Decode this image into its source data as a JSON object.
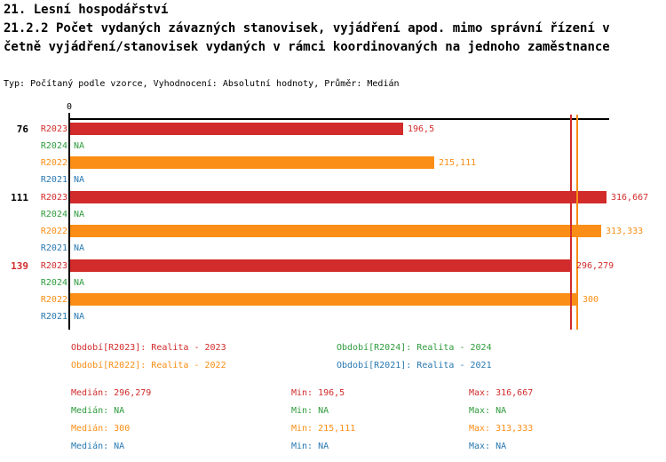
{
  "header": {
    "line1": "21. Lesní hospodářství",
    "line2": "21.2.2 Počet vydaných závazných stanovisek, vyjádření apod. mimo správní řízení v",
    "line3": "četně vyjádření/stanovisek vydaných v rámci koordinovaných na jednoho zaměstnance",
    "meta": "Typ: Počítaný podle vzorce, Vyhodnocení: Absolutní hodnoty, Průměr: Medián"
  },
  "colors": {
    "red": "#D22B2B",
    "green": "#2E9B3C",
    "orange": "#FA8E16",
    "blue": "#2878B0",
    "axis": "#000000"
  },
  "chart_data": {
    "type": "bar",
    "orientation": "horizontal",
    "x_origin_label": "0",
    "x_max": 318.8,
    "grid": false,
    "series_colors": {
      "R2023": "#D22B2B",
      "R2024": "#2E9B3C",
      "R2022": "#FA8E16",
      "R2021": "#2878B0"
    },
    "groups": [
      {
        "label": "76",
        "label_color": "#000000",
        "bars": [
          {
            "series": "R2023",
            "value": 196.5,
            "value_label": "196,5"
          },
          {
            "series": "R2024",
            "value": null,
            "value_label": "NA"
          },
          {
            "series": "R2022",
            "value": 215.111,
            "value_label": "215,111"
          },
          {
            "series": "R2021",
            "value": null,
            "value_label": "NA"
          }
        ]
      },
      {
        "label": "111",
        "label_color": "#000000",
        "bars": [
          {
            "series": "R2023",
            "value": 316.667,
            "value_label": "316,667"
          },
          {
            "series": "R2024",
            "value": null,
            "value_label": "NA"
          },
          {
            "series": "R2022",
            "value": 313.333,
            "value_label": "313,333"
          },
          {
            "series": "R2021",
            "value": null,
            "value_label": "NA"
          }
        ]
      },
      {
        "label": "139",
        "label_color": "#D22B2B",
        "bars": [
          {
            "series": "R2023",
            "value": 296.279,
            "value_label": "296,279"
          },
          {
            "series": "R2024",
            "value": null,
            "value_label": "NA"
          },
          {
            "series": "R2022",
            "value": 300,
            "value_label": "300"
          },
          {
            "series": "R2021",
            "value": null,
            "value_label": "NA"
          }
        ]
      }
    ],
    "median_lines": [
      {
        "series": "R2023",
        "value": 296.279,
        "color": "#D22B2B"
      },
      {
        "series": "R2022",
        "value": 300,
        "color": "#FA8E16"
      }
    ]
  },
  "legend": {
    "items": [
      {
        "label": "Období[R2023]: Realita - 2023",
        "color": "#D22B2B"
      },
      {
        "label": "Období[R2024]: Realita - 2024",
        "color": "#2E9B3C"
      },
      {
        "label": "Období[R2022]: Realita - 2022",
        "color": "#FA8E16"
      },
      {
        "label": "Období[R2021]: Realita - 2021",
        "color": "#2878B0"
      }
    ]
  },
  "stats": {
    "rows": [
      {
        "color": "#D22B2B",
        "median": "Medián: 296,279",
        "min": "Min: 196,5",
        "max": "Max: 316,667"
      },
      {
        "color": "#2E9B3C",
        "median": "Medián: NA",
        "min": "Min: NA",
        "max": "Max: NA"
      },
      {
        "color": "#FA8E16",
        "median": "Medián: 300",
        "min": "Min: 215,111",
        "max": "Max: 313,333"
      },
      {
        "color": "#2878B0",
        "median": "Medián: NA",
        "min": "Min: NA",
        "max": "Max: NA"
      }
    ]
  }
}
